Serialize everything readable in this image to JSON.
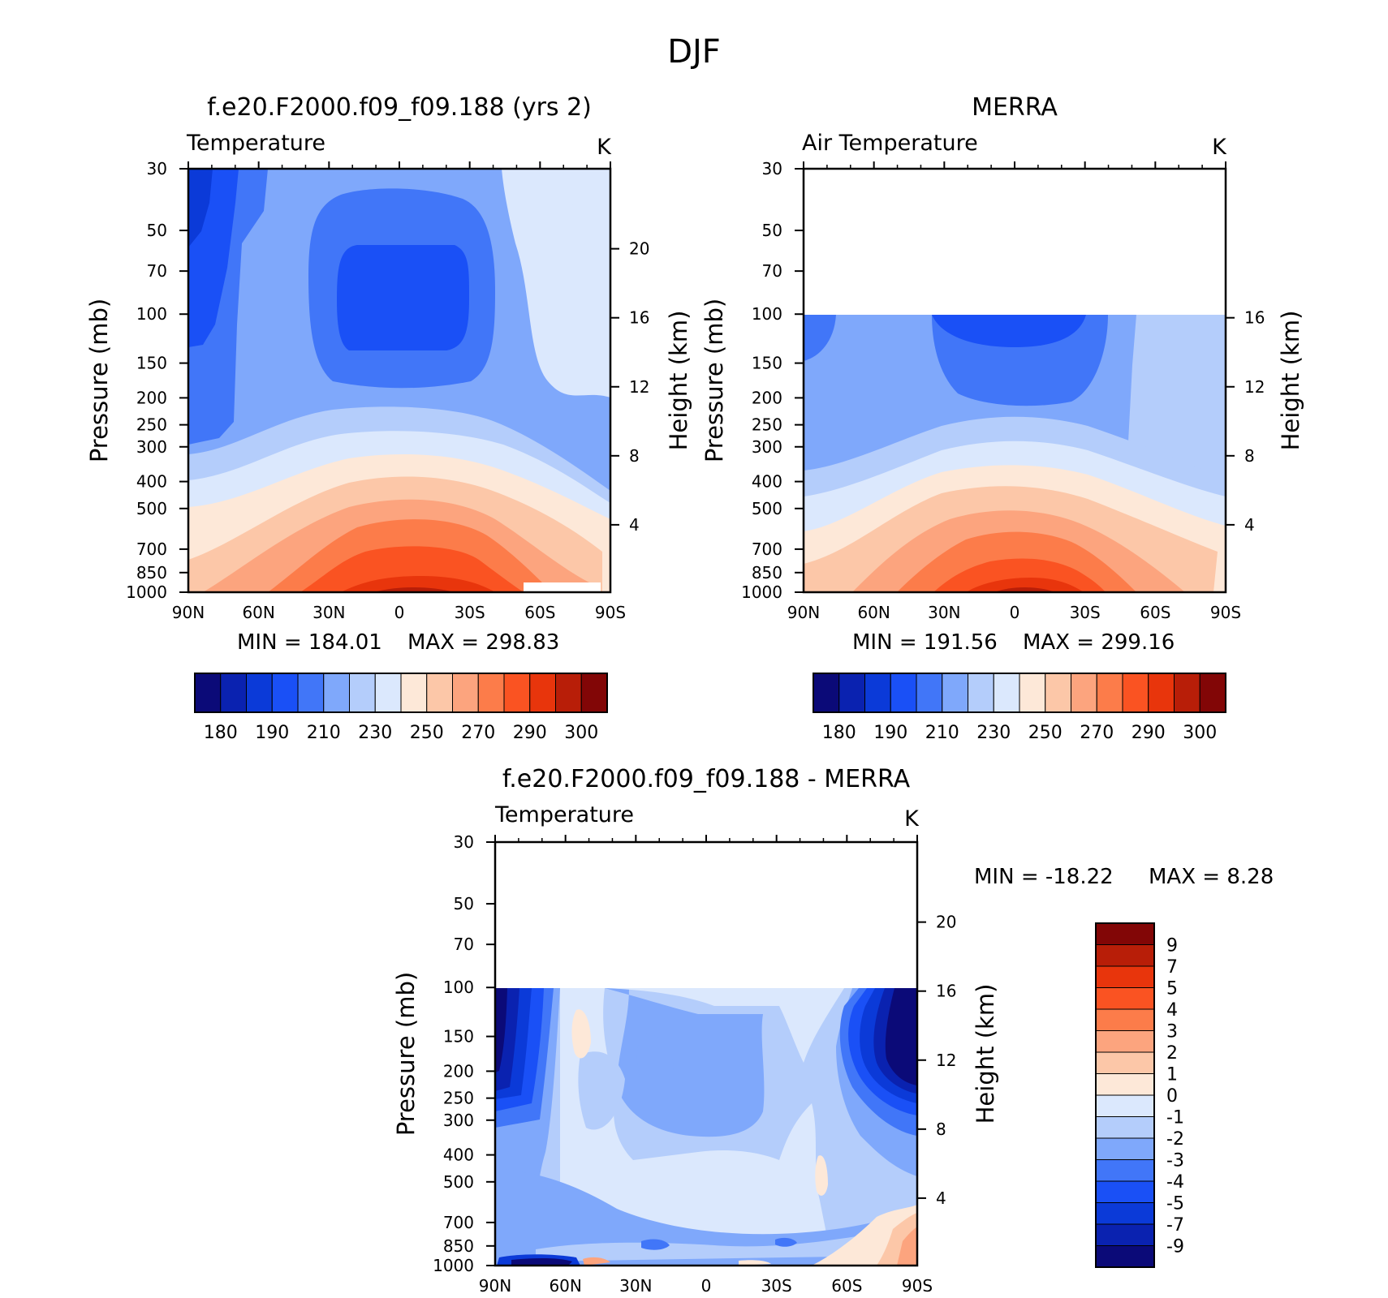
{
  "figure_title": "DJF",
  "colors": {
    "abs_palette": [
      "#0b0a78",
      "#0a22b0",
      "#0b3ad8",
      "#1a50f6",
      "#4176f8",
      "#7fa8fb",
      "#b4cdfb",
      "#dbe8fd",
      "#fde8d8",
      "#fcc7a8",
      "#fca47e",
      "#fc7c4a",
      "#fa5322",
      "#e8350c",
      "#b81e08",
      "#820606"
    ],
    "diff_palette": [
      "#0b0a78",
      "#0a22b0",
      "#0b3ad8",
      "#1a50f6",
      "#4176f8",
      "#7fa8fb",
      "#b4cdfb",
      "#dbe8fd",
      "#fde8d8",
      "#fcc7a8",
      "#fca47e",
      "#fc7c4a",
      "#fa5322",
      "#e8350c",
      "#b81e08",
      "#820606"
    ]
  },
  "chart_data": [
    {
      "type": "contour",
      "title": "f.e20.F2000.f09_f09.188 (yrs 2)",
      "variable": "Temperature",
      "units": "K",
      "xlabel": "",
      "ylabel": "Pressure (mb)",
      "ylabel_right": "Height (km)",
      "x_ticks": [
        "90N",
        "60N",
        "30N",
        "0",
        "30S",
        "60S",
        "90S"
      ],
      "y_ticks": [
        "30",
        "50",
        "70",
        "100",
        "150",
        "200",
        "250",
        "300",
        "400",
        "500",
        "700",
        "850",
        "1000"
      ],
      "y_scale": "log",
      "ylim": [
        1000,
        30
      ],
      "height_ticks": [
        "20",
        "16",
        "12",
        "8",
        "4"
      ],
      "min_label": "MIN = 184.01",
      "max_label": "MAX = 298.83",
      "min": 184.01,
      "max": 298.83,
      "colorbar_labels": [
        "180",
        "190",
        "210",
        "230",
        "250",
        "270",
        "290",
        "300"
      ]
    },
    {
      "type": "contour",
      "title": "MERRA",
      "variable": "Air Temperature",
      "units": "K",
      "xlabel": "",
      "ylabel": "Pressure (mb)",
      "ylabel_right": "Height (km)",
      "x_ticks": [
        "90N",
        "60N",
        "30N",
        "0",
        "30S",
        "60S",
        "90S"
      ],
      "y_ticks": [
        "30",
        "50",
        "70",
        "100",
        "150",
        "200",
        "250",
        "300",
        "400",
        "500",
        "700",
        "850",
        "1000"
      ],
      "y_scale": "log",
      "ylim": [
        1000,
        30
      ],
      "data_top": 100,
      "height_ticks": [
        "16",
        "12",
        "8",
        "4"
      ],
      "min_label": "MIN = 191.56",
      "max_label": "MAX = 299.16",
      "min": 191.56,
      "max": 299.16,
      "colorbar_labels": [
        "180",
        "190",
        "210",
        "230",
        "250",
        "270",
        "290",
        "300"
      ]
    },
    {
      "type": "contour",
      "title": "f.e20.F2000.f09_f09.188 - MERRA",
      "variable": "Temperature",
      "units": "K",
      "xlabel": "",
      "ylabel": "Pressure (mb)",
      "ylabel_right": "Height (km)",
      "x_ticks": [
        "90N",
        "60N",
        "30N",
        "0",
        "30S",
        "60S",
        "90S"
      ],
      "y_ticks": [
        "30",
        "50",
        "70",
        "100",
        "150",
        "200",
        "250",
        "300",
        "400",
        "500",
        "700",
        "850",
        "1000"
      ],
      "y_scale": "log",
      "ylim": [
        1000,
        30
      ],
      "data_top": 100,
      "height_ticks": [
        "20",
        "16",
        "12",
        "8",
        "4"
      ],
      "min_label": "MIN = -18.22",
      "max_label": "MAX = 8.28",
      "min": -18.22,
      "max": 8.28,
      "colorbar_labels": [
        "9",
        "7",
        "5",
        "4",
        "3",
        "2",
        "1",
        "0",
        "-1",
        "-2",
        "-3",
        "-4",
        "-5",
        "-7",
        "-9"
      ]
    }
  ]
}
